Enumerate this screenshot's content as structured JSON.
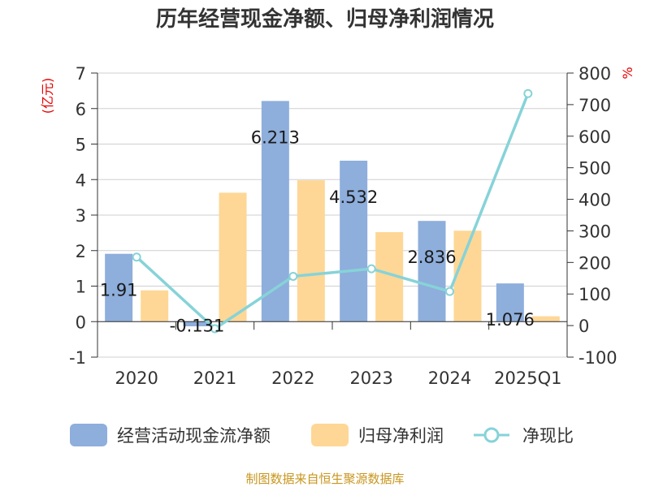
{
  "chart_data": {
    "type": "bar",
    "title": "历年经营现金净额、归母净利润情况",
    "categories": [
      "2020",
      "2021",
      "2022",
      "2023",
      "2024",
      "2025Q1"
    ],
    "series": [
      {
        "name": "经营活动现金流净额",
        "kind": "bar",
        "axis": "left",
        "color": "#8eaedc",
        "values": [
          1.91,
          -0.131,
          6.213,
          4.532,
          2.836,
          1.076
        ],
        "labels": [
          "1.91",
          "-0.131",
          "6.213",
          "4.532",
          "2.836",
          "1.076"
        ]
      },
      {
        "name": "归母净利润",
        "kind": "bar",
        "axis": "left",
        "color": "#fed796",
        "values": [
          0.88,
          3.63,
          3.98,
          2.52,
          2.56,
          0.15
        ]
      },
      {
        "name": "净现比",
        "kind": "line",
        "axis": "right",
        "color": "#86d3d8",
        "values": [
          217,
          -10,
          156,
          180,
          108,
          735
        ]
      }
    ],
    "left_axis": {
      "unit": "(亿元)",
      "min": -1,
      "max": 7,
      "ticks": [
        "-1",
        "0",
        "1",
        "2",
        "3",
        "4",
        "5",
        "6",
        "7"
      ]
    },
    "right_axis": {
      "unit": "%",
      "min": -100,
      "max": 800,
      "ticks": [
        "-100",
        "0",
        "100",
        "200",
        "300",
        "400",
        "500",
        "600",
        "700",
        "800"
      ]
    },
    "source": "制图数据来自恒生聚源数据库"
  }
}
